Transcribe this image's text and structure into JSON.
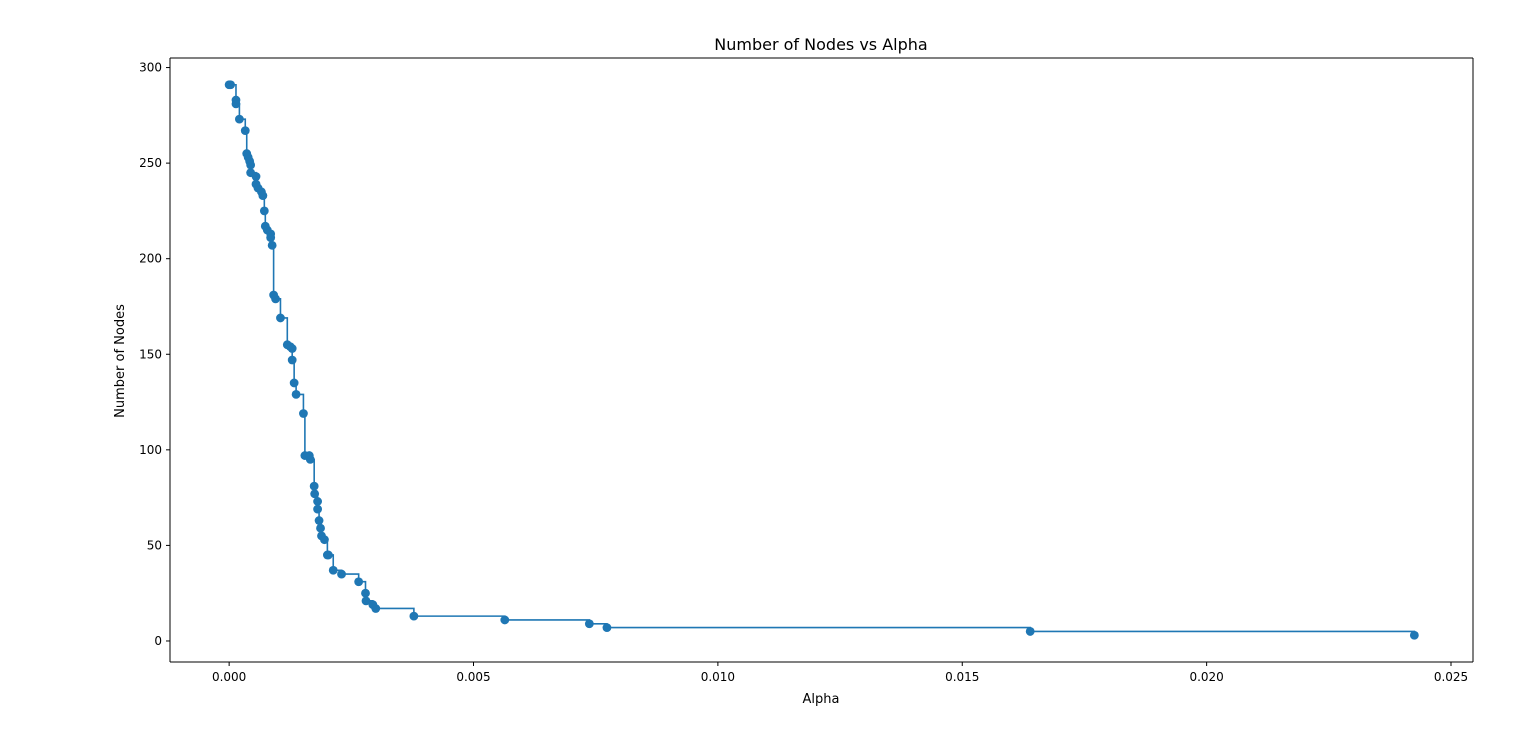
{
  "chart_data": {
    "type": "line",
    "title": "Number of Nodes vs Alpha",
    "xlabel": "Alpha",
    "ylabel": "Number of Nodes",
    "xlim": [
      -0.00121,
      0.02545
    ],
    "ylim": [
      -11,
      305
    ],
    "x_ticks": [
      {
        "value": 0.0,
        "label": "0.000"
      },
      {
        "value": 0.005,
        "label": "0.005"
      },
      {
        "value": 0.01,
        "label": "0.010"
      },
      {
        "value": 0.015,
        "label": "0.015"
      },
      {
        "value": 0.02,
        "label": "0.020"
      },
      {
        "value": 0.025,
        "label": "0.025"
      }
    ],
    "y_ticks": [
      {
        "value": 0,
        "label": "0"
      },
      {
        "value": 50,
        "label": "50"
      },
      {
        "value": 100,
        "label": "100"
      },
      {
        "value": 150,
        "label": "150"
      },
      {
        "value": 200,
        "label": "200"
      },
      {
        "value": 250,
        "label": "250"
      },
      {
        "value": 300,
        "label": "300"
      }
    ],
    "grid": false,
    "legend": false,
    "drawstyle": "steps-post",
    "marker": "circle",
    "series": [
      {
        "color": "#1f77b4",
        "points": [
          [
            0.0,
            291
          ],
          [
            3e-05,
            291
          ],
          [
            0.00014,
            283
          ],
          [
            0.00014,
            281
          ],
          [
            0.00021,
            273
          ],
          [
            0.00033,
            267
          ],
          [
            0.00036,
            255
          ],
          [
            0.00039,
            253
          ],
          [
            0.00042,
            251
          ],
          [
            0.00044,
            249
          ],
          [
            0.00044,
            245
          ],
          [
            0.00055,
            243
          ],
          [
            0.00055,
            239
          ],
          [
            0.00059,
            237
          ],
          [
            0.00066,
            235
          ],
          [
            0.00069,
            233
          ],
          [
            0.00072,
            225
          ],
          [
            0.00074,
            217
          ],
          [
            0.00078,
            215
          ],
          [
            0.00085,
            213
          ],
          [
            0.00085,
            211
          ],
          [
            0.00088,
            207
          ],
          [
            0.00091,
            181
          ],
          [
            0.00095,
            179
          ],
          [
            0.00105,
            169
          ],
          [
            0.00119,
            155
          ],
          [
            0.00125,
            154
          ],
          [
            0.00129,
            153
          ],
          [
            0.00129,
            147
          ],
          [
            0.00133,
            135
          ],
          [
            0.00137,
            129
          ],
          [
            0.00152,
            119
          ],
          [
            0.00155,
            97
          ],
          [
            0.00164,
            97
          ],
          [
            0.00166,
            95
          ],
          [
            0.00174,
            81
          ],
          [
            0.00175,
            77
          ],
          [
            0.00181,
            73
          ],
          [
            0.00181,
            69
          ],
          [
            0.00184,
            63
          ],
          [
            0.00187,
            59
          ],
          [
            0.00189,
            55
          ],
          [
            0.00195,
            53
          ],
          [
            0.00201,
            45
          ],
          [
            0.00203,
            45
          ],
          [
            0.00213,
            37
          ],
          [
            0.0023,
            35
          ],
          [
            0.00265,
            31
          ],
          [
            0.00279,
            25
          ],
          [
            0.0028,
            21
          ],
          [
            0.00294,
            19
          ],
          [
            0.003,
            17
          ],
          [
            0.00378,
            13
          ],
          [
            0.00564,
            11
          ],
          [
            0.00737,
            9
          ],
          [
            0.00773,
            7
          ],
          [
            0.01639,
            5
          ],
          [
            0.02425,
            3
          ]
        ]
      }
    ]
  }
}
